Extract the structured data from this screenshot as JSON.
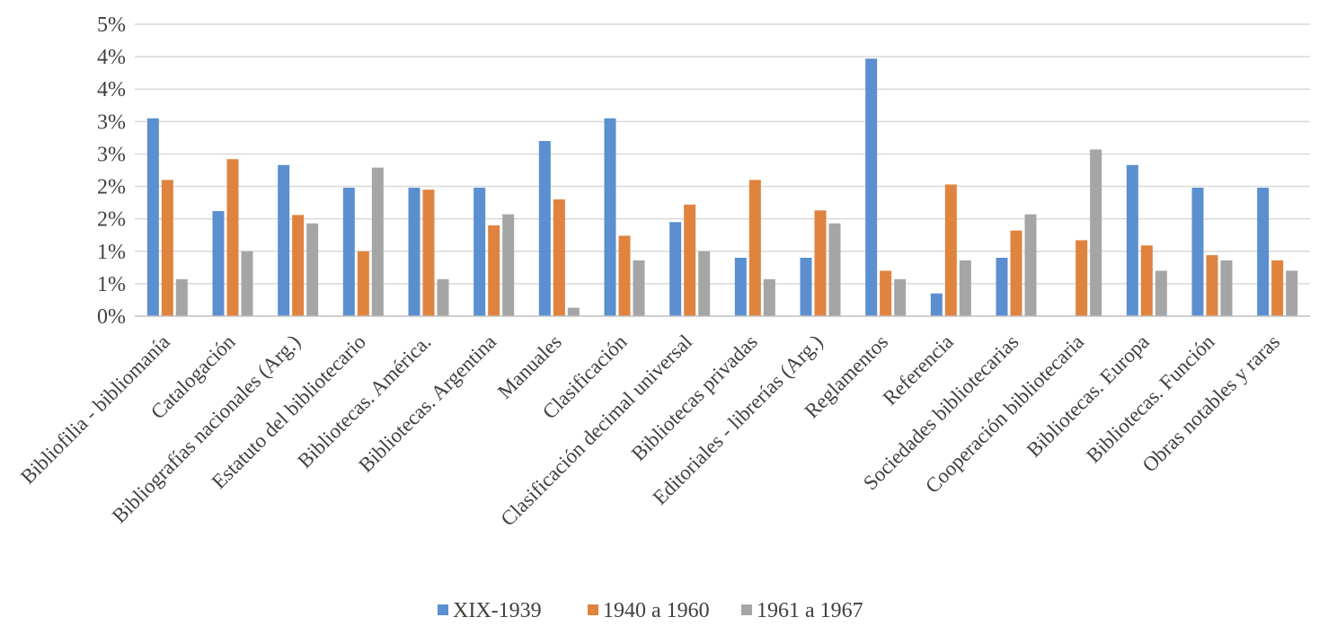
{
  "chart_data": {
    "type": "bar",
    "title": "",
    "xlabel": "",
    "ylabel": "",
    "ylim": [
      0,
      4.5
    ],
    "yticks": [
      0,
      0.5,
      1,
      1.5,
      2,
      2.5,
      3,
      3.5,
      4,
      4.5
    ],
    "ytick_labels": [
      "0%",
      "1%",
      "1%",
      "2%",
      "2%",
      "3%",
      "3%",
      "4%",
      "4%",
      "5%"
    ],
    "categories": [
      "Bibliofilia - bibliomanía",
      "Catalogación",
      "Bibliografías nacionales (Arg.)",
      "Estatuto del bibliotecario",
      "Bibliotecas. América.",
      "Bibliotecas. Argentina",
      "Manuales",
      "Clasificación",
      "Clasificación decimal universal",
      "Bibliotecas privadas",
      "Editoriales - librerías (Arg.)",
      "Reglamentos",
      "Referencia",
      "Sociedades bibliotecarias",
      "Cooperación bibliotecaria",
      "Bibliotecas. Europa",
      "Bibliotecas. Función",
      "Obras notables y raras"
    ],
    "series": [
      {
        "name": "XIX-1939",
        "color": "#5B8FD0",
        "values": [
          3.05,
          1.62,
          2.33,
          1.98,
          1.98,
          1.98,
          2.7,
          3.05,
          1.45,
          0.9,
          0.9,
          3.97,
          0.35,
          0.9,
          0.0,
          2.33,
          1.98,
          1.98
        ]
      },
      {
        "name": "1940 a 1960",
        "color": "#E0833F",
        "values": [
          2.1,
          2.42,
          1.56,
          1.0,
          1.95,
          1.4,
          1.8,
          1.24,
          1.72,
          2.1,
          1.63,
          0.7,
          2.03,
          1.32,
          1.17,
          1.09,
          0.94,
          0.86
        ]
      },
      {
        "name": "1961 a 1967",
        "color": "#A5A5A5",
        "values": [
          0.57,
          1.0,
          1.43,
          2.29,
          0.57,
          1.57,
          0.13,
          0.86,
          1.0,
          0.57,
          1.43,
          0.57,
          0.86,
          1.57,
          2.57,
          0.7,
          0.86,
          0.7
        ]
      }
    ],
    "legend_position": "bottom-center",
    "grid": true
  }
}
